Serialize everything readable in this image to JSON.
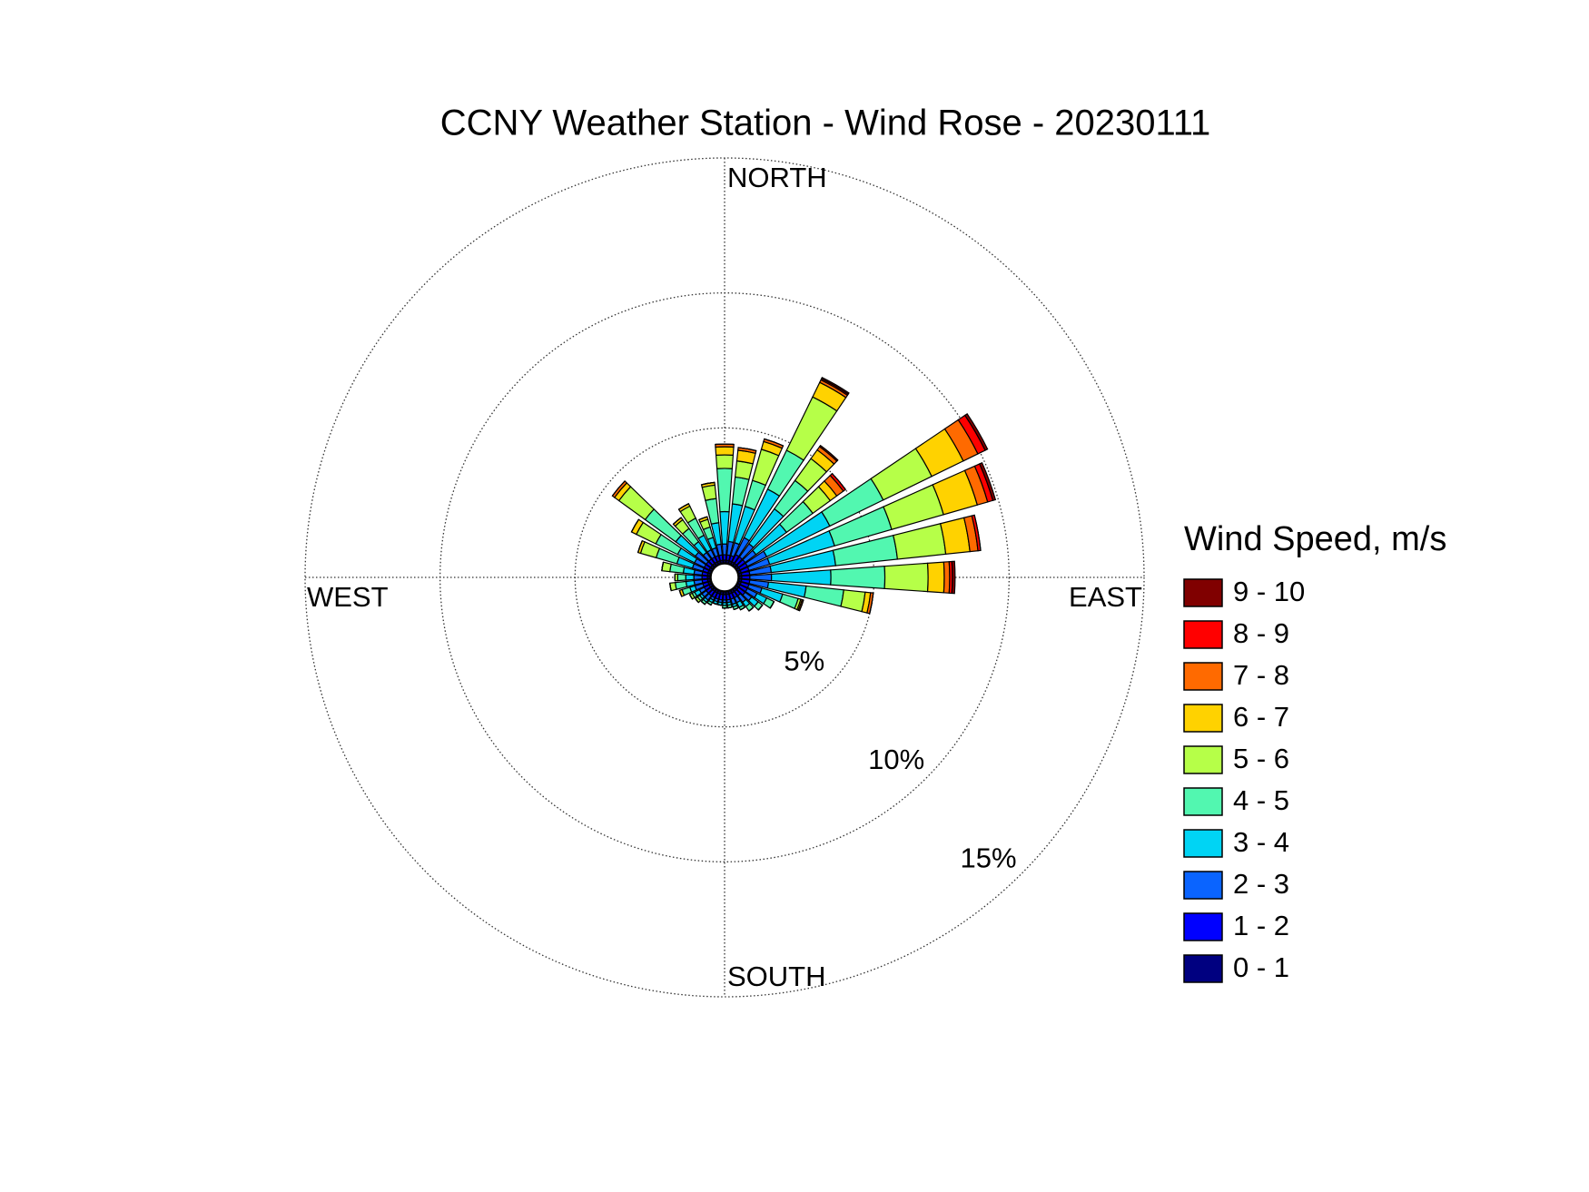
{
  "chart_data": {
    "type": "windrose",
    "title": "CCNY Weather Station - Wind Rose - 20230111",
    "legend_title": "Wind Speed, m/s",
    "compass_labels": [
      "NORTH",
      "EAST",
      "SOUTH",
      "WEST"
    ],
    "directions": [
      0,
      10,
      20,
      30,
      40,
      50,
      60,
      70,
      80,
      90,
      100,
      110,
      120,
      130,
      140,
      150,
      160,
      170,
      180,
      190,
      200,
      210,
      220,
      230,
      240,
      250,
      260,
      270,
      280,
      290,
      300,
      310,
      320,
      330,
      340,
      350
    ],
    "rlim": [
      0,
      15
    ],
    "rticks": [
      {
        "value": 5,
        "label": "5%"
      },
      {
        "value": 10,
        "label": "10%"
      },
      {
        "value": 15,
        "label": "15%"
      }
    ],
    "grid": true,
    "legend": "right",
    "series": [
      {
        "name": "0 - 1",
        "color": "#000080",
        "values": [
          0.1,
          0.1,
          0.1,
          0.1,
          0.1,
          0.1,
          0.1,
          0.1,
          0.1,
          0.1,
          0.1,
          0.1,
          0.1,
          0.1,
          0.1,
          0.1,
          0.1,
          0.1,
          0.1,
          0.1,
          0.1,
          0.1,
          0.1,
          0.1,
          0.1,
          0.1,
          0.1,
          0.1,
          0.1,
          0.1,
          0.1,
          0.1,
          0.1,
          0.1,
          0.1,
          0.1
        ]
      },
      {
        "name": "1 - 2",
        "color": "#0000ff",
        "values": [
          0.2,
          0.2,
          0.2,
          0.3,
          0.3,
          0.3,
          0.3,
          0.3,
          0.3,
          0.3,
          0.3,
          0.3,
          0.3,
          0.3,
          0.2,
          0.2,
          0.2,
          0.2,
          0.2,
          0.2,
          0.2,
          0.2,
          0.2,
          0.2,
          0.2,
          0.2,
          0.2,
          0.2,
          0.2,
          0.2,
          0.2,
          0.2,
          0.2,
          0.2,
          0.2,
          0.2
        ]
      },
      {
        "name": "2 - 3",
        "color": "#0a64ff",
        "values": [
          0.4,
          0.5,
          0.5,
          0.7,
          0.6,
          0.5,
          0.8,
          0.8,
          0.8,
          0.8,
          0.7,
          0.5,
          0.4,
          0.3,
          0.3,
          0.2,
          0.2,
          0.1,
          0.1,
          0.1,
          0.1,
          0.1,
          0.2,
          0.2,
          0.2,
          0.3,
          0.3,
          0.3,
          0.3,
          0.4,
          0.4,
          0.5,
          0.3,
          0.3,
          0.3,
          0.4
        ]
      },
      {
        "name": "3 - 4",
        "color": "#00d4f4",
        "values": [
          1.2,
          1.4,
          1.4,
          2.0,
          1.6,
          1.4,
          2.6,
          2.5,
          2.4,
          2.2,
          1.4,
          0.8,
          0.4,
          0.3,
          0.2,
          0.2,
          0.1,
          0.1,
          0.1,
          0.1,
          0.1,
          0.1,
          0.1,
          0.1,
          0.2,
          0.2,
          0.3,
          0.3,
          0.4,
          0.6,
          0.7,
          0.9,
          0.5,
          0.6,
          0.4,
          0.8
        ]
      },
      {
        "name": "4 - 5",
        "color": "#52f7b0",
        "values": [
          1.6,
          1.0,
          1.0,
          1.6,
          1.3,
          1.2,
          2.2,
          2.2,
          2.3,
          2.0,
          1.4,
          0.6,
          0.3,
          0.2,
          0.2,
          0.1,
          0.1,
          0.1,
          0.1,
          0,
          0,
          0.1,
          0.1,
          0.1,
          0.1,
          0.3,
          0.4,
          0.3,
          0.5,
          0.8,
          0.9,
          1.4,
          0.6,
          0.7,
          0.4,
          0.9
        ]
      },
      {
        "name": "5 - 6",
        "color": "#b6ff48",
        "values": [
          0.5,
          0.6,
          1.2,
          2.2,
          1.0,
          0.8,
          2.0,
          2.0,
          1.8,
          1.6,
          0.8,
          0.1,
          0,
          0,
          0,
          0,
          0,
          0,
          0,
          0,
          0,
          0,
          0,
          0.1,
          0.1,
          0,
          0.2,
          0.1,
          0.3,
          0.6,
          0.8,
          1.2,
          0.4,
          0.5,
          0.3,
          0.5
        ]
      },
      {
        "name": "6 - 7",
        "color": "#ffd200",
        "values": [
          0.3,
          0.4,
          0.3,
          0.6,
          0.4,
          0.3,
          1.3,
          1.3,
          0.9,
          0.6,
          0.2,
          0.05,
          0,
          0,
          0,
          0,
          0,
          0,
          0,
          0,
          0,
          0,
          0,
          0,
          0,
          0.1,
          0,
          0,
          0,
          0.1,
          0.2,
          0.2,
          0.1,
          0.1,
          0.1,
          0.1
        ]
      },
      {
        "name": "7 - 8",
        "color": "#ff6a00",
        "values": [
          0.1,
          0.1,
          0.1,
          0.1,
          0.15,
          0.3,
          0.6,
          0.4,
          0.3,
          0.2,
          0.1,
          0.05,
          0,
          0,
          0,
          0,
          0,
          0,
          0,
          0,
          0,
          0,
          0,
          0,
          0,
          0,
          0,
          0,
          0,
          0,
          0,
          0.1,
          0,
          0,
          0,
          0
        ]
      },
      {
        "name": "8 - 9",
        "color": "#ff0000",
        "values": [
          0,
          0,
          0,
          0.05,
          0.05,
          0.1,
          0.3,
          0.2,
          0.1,
          0.1,
          0,
          0,
          0,
          0,
          0,
          0,
          0,
          0,
          0,
          0,
          0,
          0,
          0,
          0,
          0,
          0,
          0,
          0,
          0,
          0,
          0,
          0,
          0,
          0,
          0,
          0
        ]
      },
      {
        "name": "9 - 10",
        "color": "#800000",
        "values": [
          0,
          0,
          0,
          0.05,
          0,
          0,
          0.1,
          0.1,
          0,
          0.1,
          0,
          0,
          0,
          0,
          0,
          0,
          0,
          0,
          0,
          0,
          0,
          0,
          0,
          0,
          0,
          0,
          0,
          0,
          0,
          0,
          0,
          0,
          0,
          0,
          0,
          0
        ]
      }
    ]
  }
}
